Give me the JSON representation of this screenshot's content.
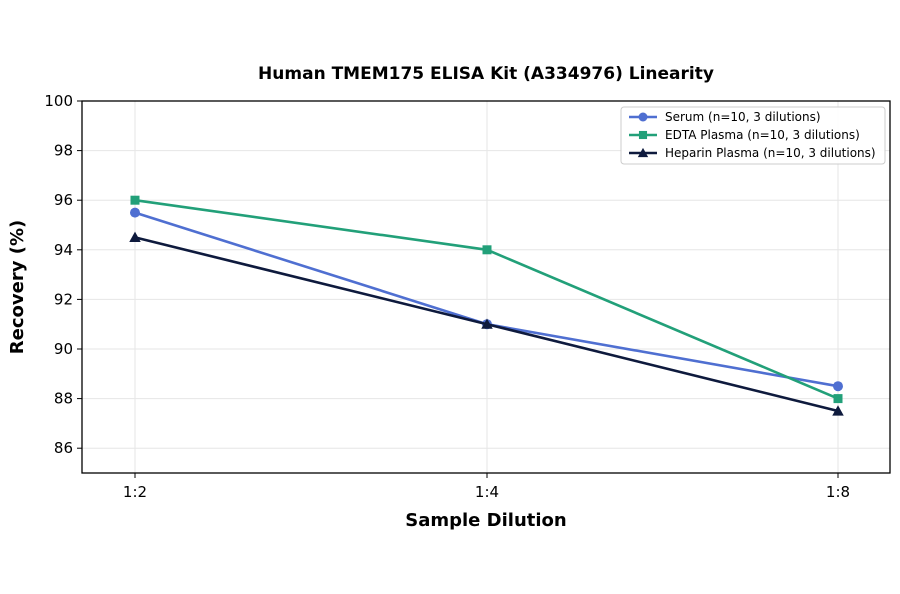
{
  "chart_data": {
    "type": "line",
    "title": "Human TMEM175 ELISA Kit (A334976) Linearity",
    "xlabel": "Sample Dilution",
    "ylabel": "Recovery (%)",
    "categories": [
      "1:2",
      "1:4",
      "1:8"
    ],
    "ylim": [
      85,
      100
    ],
    "yticks": [
      86,
      88,
      90,
      92,
      94,
      96,
      98,
      100
    ],
    "grid": true,
    "legend_position": "top-right",
    "series": [
      {
        "name": "Serum (n=10, 3 dilutions)",
        "values": [
          95.5,
          91.0,
          88.5
        ],
        "color": "#4F6FD1",
        "marker": "circle"
      },
      {
        "name": "EDTA Plasma (n=10, 3 dilutions)",
        "values": [
          96.0,
          94.0,
          88.0
        ],
        "color": "#22A079",
        "marker": "square"
      },
      {
        "name": "Heparin Plasma (n=10, 3 dilutions)",
        "values": [
          94.5,
          91.0,
          87.5
        ],
        "color": "#0E1A3D",
        "marker": "triangle"
      }
    ]
  }
}
